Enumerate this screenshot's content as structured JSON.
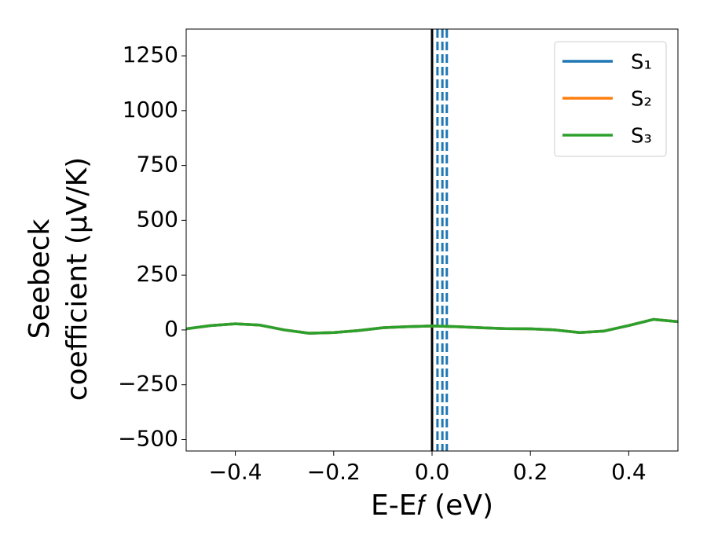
{
  "chart_data": {
    "type": "line",
    "xlabel": "E-E𝑓 (eV)",
    "ylabel": [
      "Seebeck",
      "coefficient  (μV/K)"
    ],
    "x": [
      -0.5,
      -0.45,
      -0.4,
      -0.35,
      -0.3,
      -0.25,
      -0.2,
      -0.15,
      -0.1,
      -0.05,
      0,
      0.05,
      0.1,
      0.15,
      0.2,
      0.25,
      0.3,
      0.35,
      0.4,
      0.45,
      0.5
    ],
    "series": [
      {
        "name": "S₁",
        "color": "#1f77b4",
        "values": [
          5,
          20,
          28,
          22,
          0,
          -15,
          -12,
          -3,
          10,
          15,
          18,
          15,
          10,
          6,
          5,
          0,
          -12,
          -5,
          20,
          48,
          38
        ]
      },
      {
        "name": "S₂",
        "color": "#ff7f0e",
        "values": [
          5,
          20,
          28,
          22,
          0,
          -15,
          -12,
          -3,
          10,
          15,
          18,
          15,
          10,
          6,
          5,
          0,
          -12,
          -5,
          20,
          48,
          38
        ]
      },
      {
        "name": "S₃",
        "color": "#2ca02c",
        "values": [
          5,
          20,
          28,
          22,
          0,
          -15,
          -12,
          -3,
          10,
          15,
          18,
          15,
          10,
          6,
          5,
          0,
          -12,
          -5,
          20,
          48,
          38
        ]
      }
    ],
    "vlines": [
      {
        "x": 0,
        "color": "#000000",
        "dashed": false
      },
      {
        "x": 0.011,
        "color": "#1f77b4",
        "dashed": true
      },
      {
        "x": 0.021,
        "color": "#1f77b4",
        "dashed": true
      },
      {
        "x": 0.03,
        "color": "#1f77b4",
        "dashed": true
      }
    ],
    "xlim": [
      -0.5,
      0.5
    ],
    "ylim": [
      -552,
      1372
    ],
    "xticks": [
      {
        "value": -0.4,
        "label": "−0.4"
      },
      {
        "value": -0.2,
        "label": "−0.2"
      },
      {
        "value": 0,
        "label": "0.0"
      },
      0.2,
      0.4
    ],
    "yticks": [
      {
        "value": -500,
        "label": "−500"
      },
      {
        "value": -250,
        "label": "−250"
      },
      0,
      250,
      500,
      750,
      1000,
      1250
    ],
    "legend": "upper right"
  }
}
